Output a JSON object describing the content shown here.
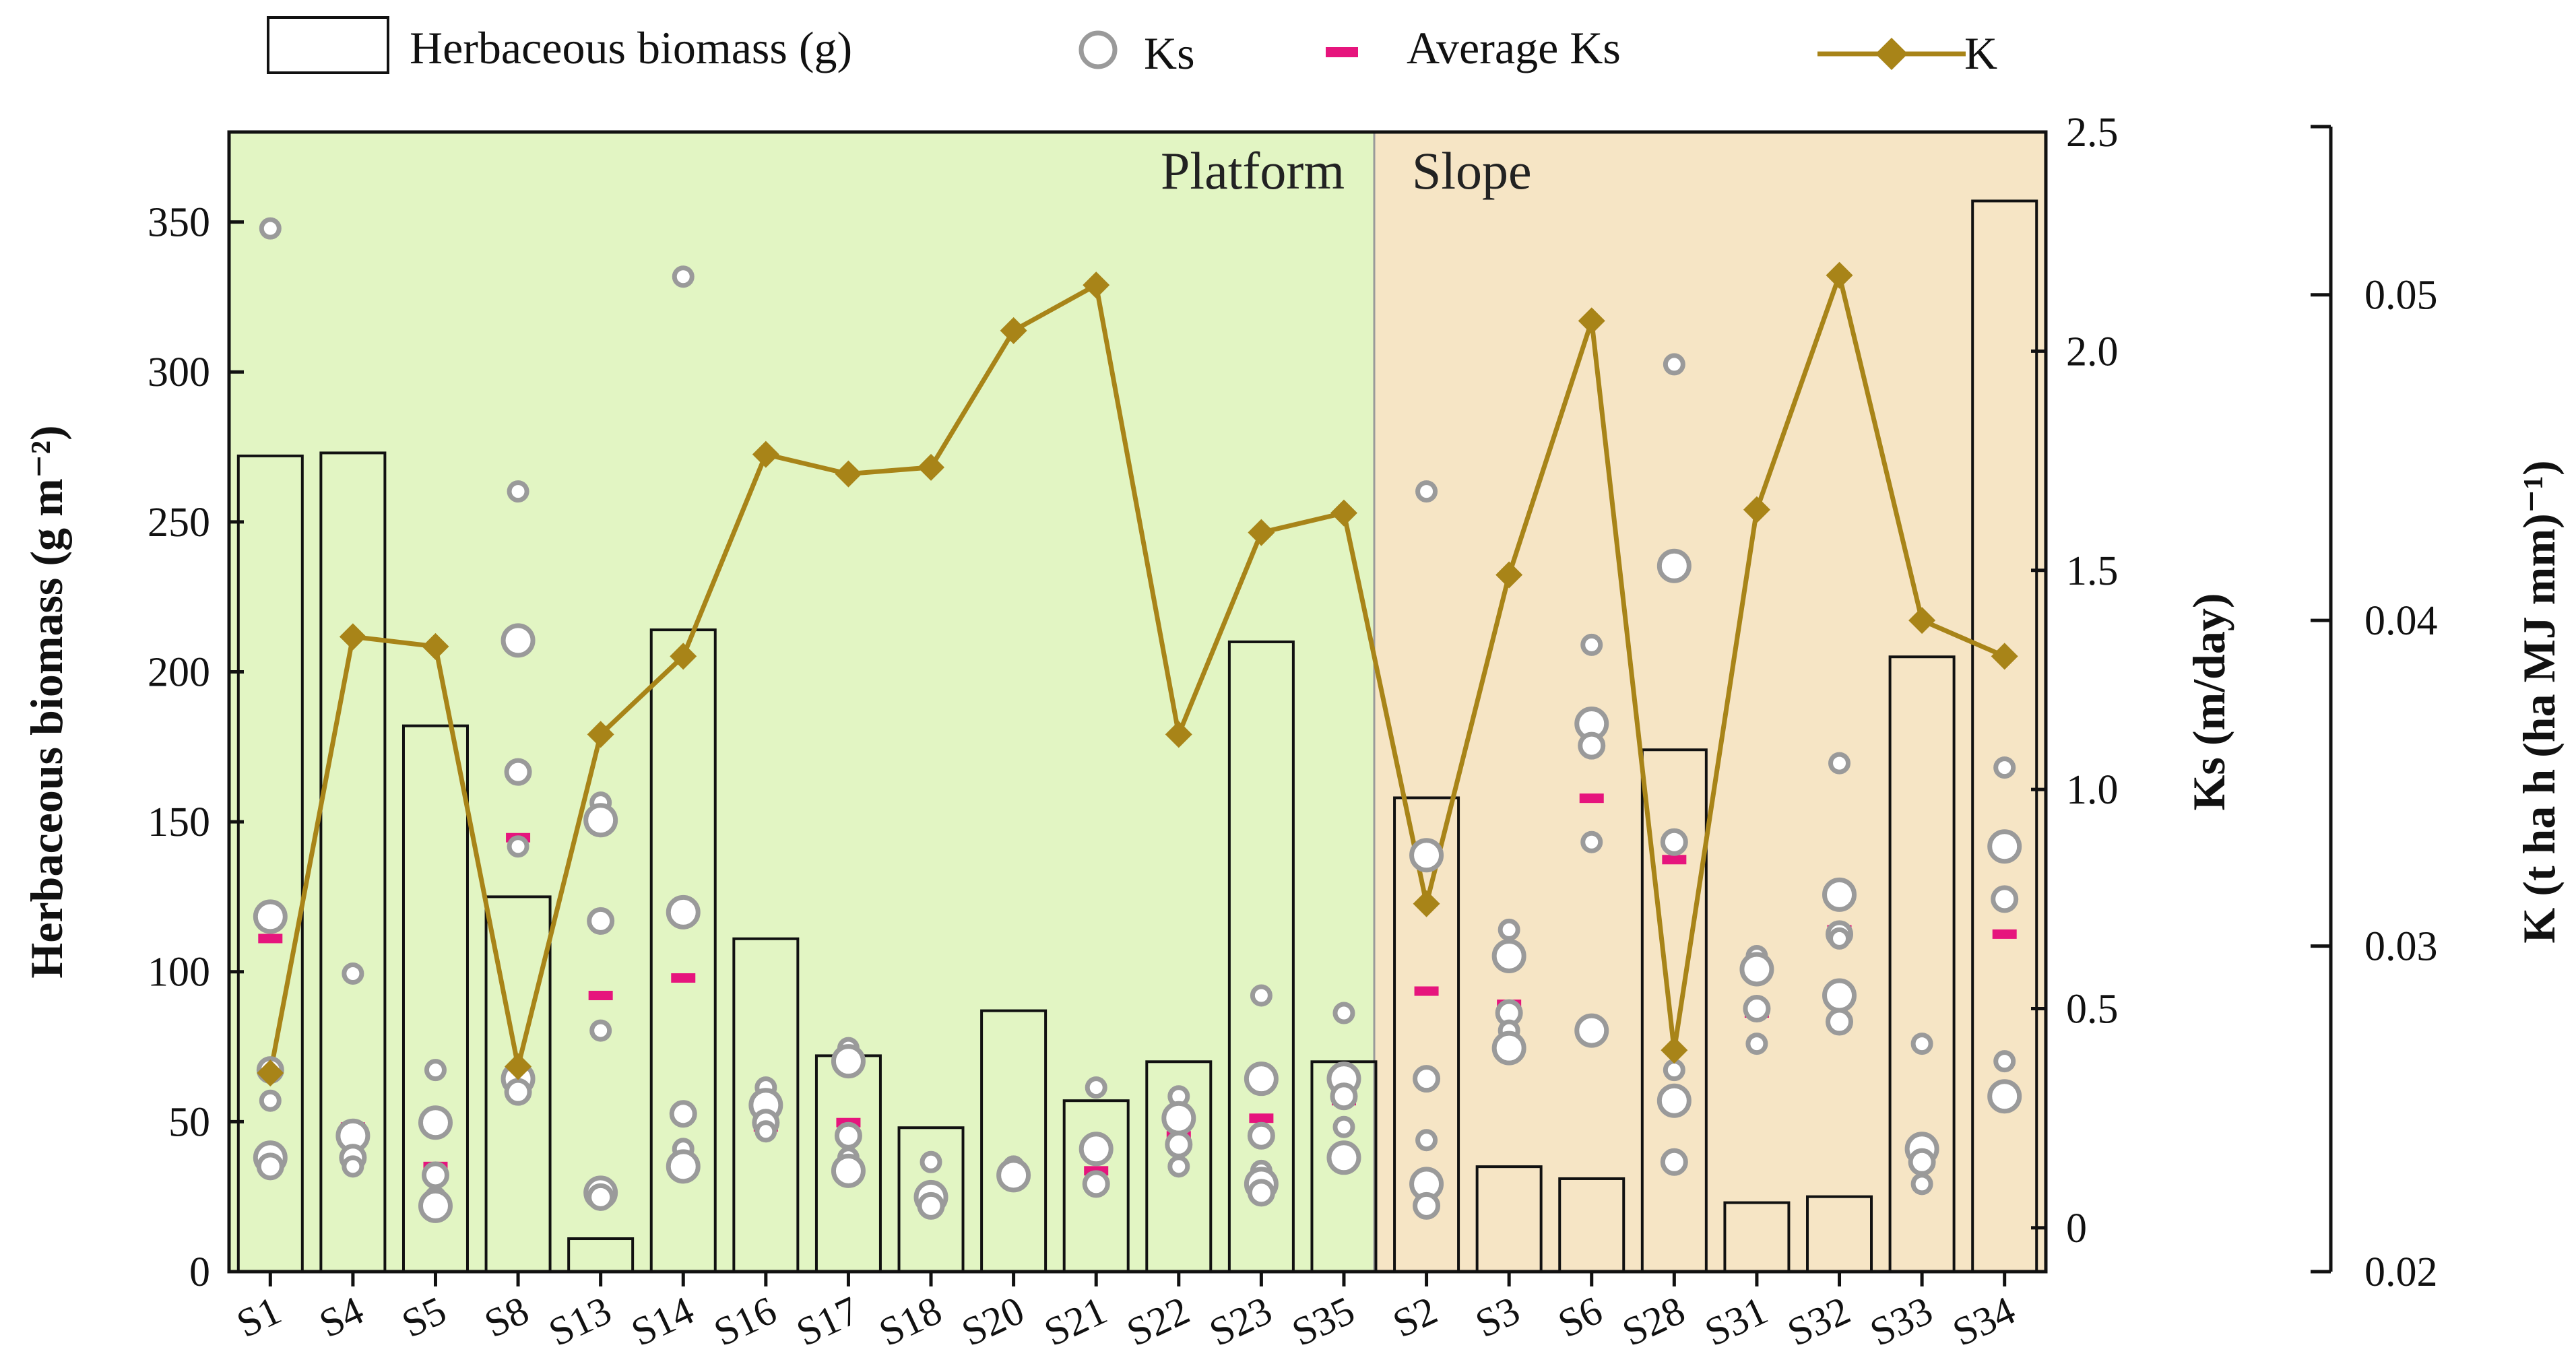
{
  "chart_data": {
    "type": "bar+scatter+line",
    "categories": [
      "S1",
      "S4",
      "S5",
      "S8",
      "S13",
      "S14",
      "S16",
      "S17",
      "S18",
      "S20",
      "S21",
      "S22",
      "S23",
      "S35",
      "S2",
      "S3",
      "S6",
      "S28",
      "S31",
      "S32",
      "S33",
      "S34"
    ],
    "regions": [
      {
        "label": "Platform",
        "from": "S1",
        "to": "S35",
        "color": "#e2f5c3"
      },
      {
        "label": "Slope",
        "from": "S2",
        "to": "S34",
        "color": "#f6e5c5"
      }
    ],
    "legend": {
      "biomass": "Herbaceous biomass (g)",
      "ks": "Ks",
      "avg_ks": "Average Ks",
      "k": "K"
    },
    "series": [
      {
        "name": "Herbaceous biomass",
        "axis": "left",
        "type": "bar",
        "values": [
          272,
          273,
          182,
          125,
          11,
          214,
          111,
          72,
          48,
          87,
          57,
          70,
          210,
          70,
          158,
          35,
          31,
          174,
          23,
          25,
          205,
          357
        ]
      },
      {
        "name": "Ks",
        "axis": "right1",
        "type": "scatter",
        "values": [
          [
            2.28,
            0.71,
            0.36,
            0.29,
            0.16,
            0.14
          ],
          [
            0.58,
            0.21,
            0.16,
            0.14
          ],
          [
            0.36,
            0.24,
            0.12,
            0.07,
            0.05
          ],
          [
            1.68,
            1.34,
            1.04,
            0.87,
            0.34,
            0.31
          ],
          [
            0.97,
            0.93,
            0.7,
            0.45,
            0.08,
            0.07
          ],
          [
            2.17,
            0.72,
            0.26,
            0.18,
            0.14
          ],
          [
            0.32,
            0.28,
            0.24,
            0.22
          ],
          [
            0.41,
            0.38,
            0.21,
            0.16,
            0.13
          ],
          [
            0.15,
            0.07,
            0.05
          ],
          [
            0.14,
            0.12
          ],
          [
            0.32,
            0.18,
            0.1
          ],
          [
            0.3,
            0.25,
            0.19,
            0.14
          ],
          [
            0.53,
            0.34,
            0.21,
            0.13,
            0.1,
            0.08
          ],
          [
            0.49,
            0.34,
            0.3,
            0.23,
            0.16
          ],
          [
            1.68,
            0.85,
            0.34,
            0.2,
            0.1,
            0.05
          ],
          [
            0.68,
            0.62,
            0.49,
            0.45,
            0.41
          ],
          [
            1.33,
            1.15,
            1.1,
            0.88,
            0.45
          ],
          [
            1.97,
            1.51,
            0.88,
            0.36,
            0.29,
            0.15
          ],
          [
            0.62,
            0.59,
            0.5,
            0.42
          ],
          [
            1.06,
            0.76,
            0.67,
            0.66,
            0.53,
            0.47
          ],
          [
            0.42,
            0.18,
            0.15,
            0.1
          ],
          [
            1.05,
            0.87,
            0.75,
            0.38,
            0.3
          ]
        ]
      },
      {
        "name": "Average Ks",
        "axis": "right1",
        "type": "dash",
        "values": [
          0.66,
          0.23,
          0.14,
          0.89,
          0.53,
          0.57,
          0.23,
          0.24,
          0.07,
          0.12,
          0.13,
          0.21,
          0.25,
          0.29,
          0.54,
          0.51,
          0.98,
          0.84,
          0.49,
          0.68,
          0.15,
          0.67
        ]
      },
      {
        "name": "K",
        "axis": "right2",
        "type": "line",
        "color": "#a88418",
        "values": [
          0.0261,
          0.0395,
          0.0392,
          0.0263,
          0.0365,
          0.0389,
          0.0451,
          0.0445,
          0.0447,
          0.0489,
          0.0503,
          0.0365,
          0.0427,
          0.0433,
          0.0313,
          0.0414,
          0.0492,
          0.0268,
          0.0434,
          0.0506,
          0.04,
          0.0389
        ]
      }
    ],
    "axes": {
      "left": {
        "label": "Herbaceous biomass (g m⁻²)",
        "ylim": [
          0,
          380
        ],
        "ticks": [
          0,
          50,
          100,
          150,
          200,
          250,
          300,
          350
        ],
        "tick_labels": [
          "0",
          "50",
          "100",
          "150",
          "200",
          "250",
          "300",
          "350"
        ]
      },
      "right1": {
        "label": "Ks (m/day)",
        "ylim": [
          -0.1,
          2.5
        ],
        "ticks": [
          0,
          0.5,
          1.0,
          1.5,
          2.0,
          2.5
        ],
        "tick_labels": [
          "0",
          "0.5",
          "1.0",
          "1.5",
          "2.0",
          "2.5"
        ]
      },
      "right2": {
        "label": "K (t ha h (ha MJ mm)⁻¹)",
        "ylim": [
          0.02,
          0.055
        ],
        "ticks": [
          0.02,
          0.03,
          0.04,
          0.05
        ],
        "tick_labels": [
          "0.02",
          "0.03",
          "0.04",
          "0.05"
        ]
      }
    }
  }
}
